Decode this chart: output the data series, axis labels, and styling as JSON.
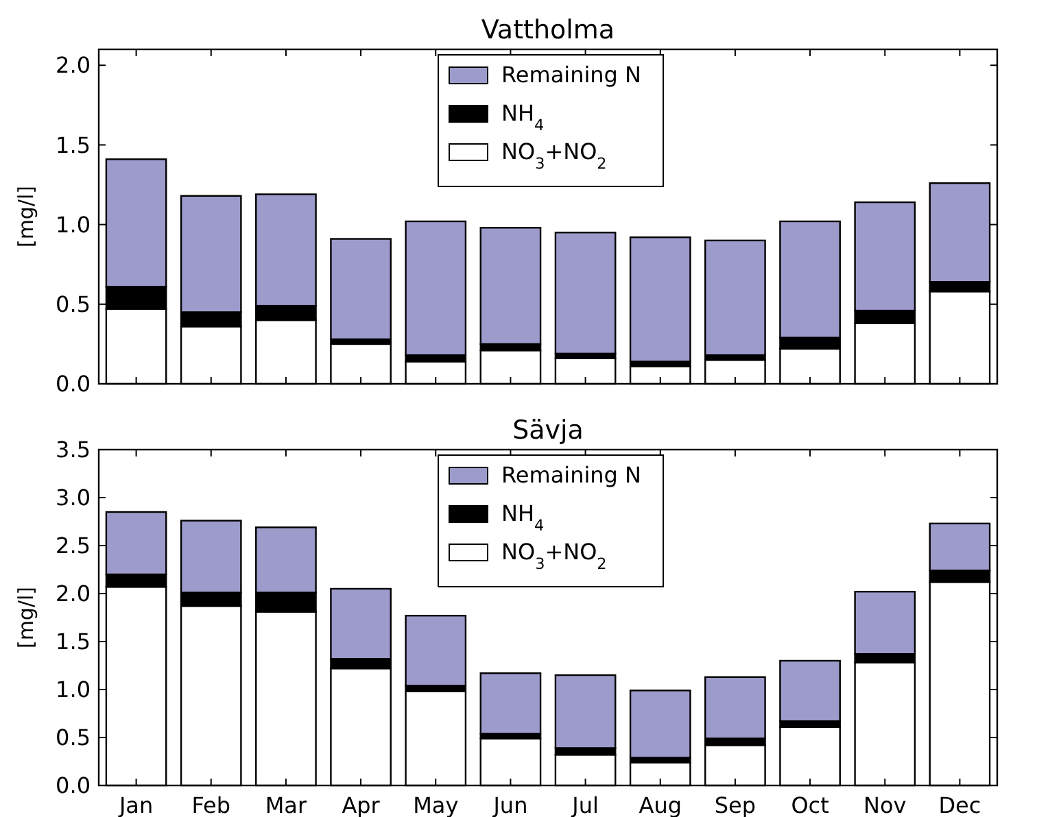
{
  "chart_data": [
    {
      "type": "bar",
      "title": "Vattholma",
      "ylabel": "[mg/l]",
      "stacked": true,
      "legend": "top",
      "grid": false,
      "tick_labels": "y",
      "categories": [
        null,
        null,
        null,
        null,
        null,
        null,
        null,
        null,
        null,
        null,
        null,
        null
      ],
      "ylim": [
        0,
        2.1
      ],
      "yticks": [
        {
          "value": 0,
          "label": "0.0"
        },
        {
          "value": 0.5,
          "label": "0.5"
        },
        {
          "value": 1,
          "label": "1.0"
        },
        {
          "value": 1.5,
          "label": "1.5"
        },
        {
          "value": 2,
          "label": "2.0"
        }
      ],
      "series": [
        {
          "name": "NO$_{3}$+NO$_{2}$",
          "color": "#ffffff",
          "values": [
            0.47,
            0.36,
            0.4,
            0.25,
            0.14,
            0.21,
            0.16,
            0.11,
            0.15,
            0.22,
            0.38,
            0.58
          ]
        },
        {
          "name": "NH$_{4}$",
          "color": "#000000",
          "values": [
            0.14,
            0.09,
            0.09,
            0.03,
            0.04,
            0.04,
            0.03,
            0.03,
            0.03,
            0.07,
            0.08,
            0.06
          ]
        },
        {
          "name": "Remaining N",
          "color": "#9d9bcb",
          "values": [
            0.8,
            0.73,
            0.7,
            0.63,
            0.84,
            0.73,
            0.76,
            0.78,
            0.72,
            0.73,
            0.68,
            0.62
          ]
        }
      ]
    },
    {
      "type": "bar",
      "title": "Sävja",
      "ylabel": "[mg/l]",
      "stacked": true,
      "legend": "top",
      "grid": false,
      "categories": [
        "Jan",
        "Feb",
        "Mar",
        "Apr",
        "May",
        "Jun",
        "Jul",
        "Aug",
        "Sep",
        "Oct",
        "Nov",
        "Dec"
      ],
      "ylim": [
        0,
        3.5
      ],
      "yticks": [
        {
          "value": 0,
          "label": "0.0"
        },
        {
          "value": 0.5,
          "label": "0.5"
        },
        {
          "value": 1,
          "label": "1.0"
        },
        {
          "value": 1.5,
          "label": "1.5"
        },
        {
          "value": 2,
          "label": "2.0"
        },
        {
          "value": 2.5,
          "label": "2.5"
        },
        {
          "value": 3,
          "label": "3.0"
        },
        {
          "value": 3.5,
          "label": "3.5"
        }
      ],
      "series": [
        {
          "name": "NO$_{3}$+NO$_{2}$",
          "color": "#ffffff",
          "values": [
            2.07,
            1.87,
            1.81,
            1.22,
            0.98,
            0.49,
            0.32,
            0.24,
            0.42,
            0.61,
            1.28,
            2.12
          ]
        },
        {
          "name": "NH$_{4}$",
          "color": "#000000",
          "values": [
            0.13,
            0.14,
            0.2,
            0.1,
            0.06,
            0.05,
            0.07,
            0.05,
            0.07,
            0.06,
            0.09,
            0.12
          ]
        },
        {
          "name": "Remaining N",
          "color": "#9d9bcb",
          "values": [
            0.65,
            0.75,
            0.68,
            0.73,
            0.73,
            0.63,
            0.76,
            0.7,
            0.64,
            0.63,
            0.65,
            0.49
          ]
        }
      ]
    }
  ]
}
